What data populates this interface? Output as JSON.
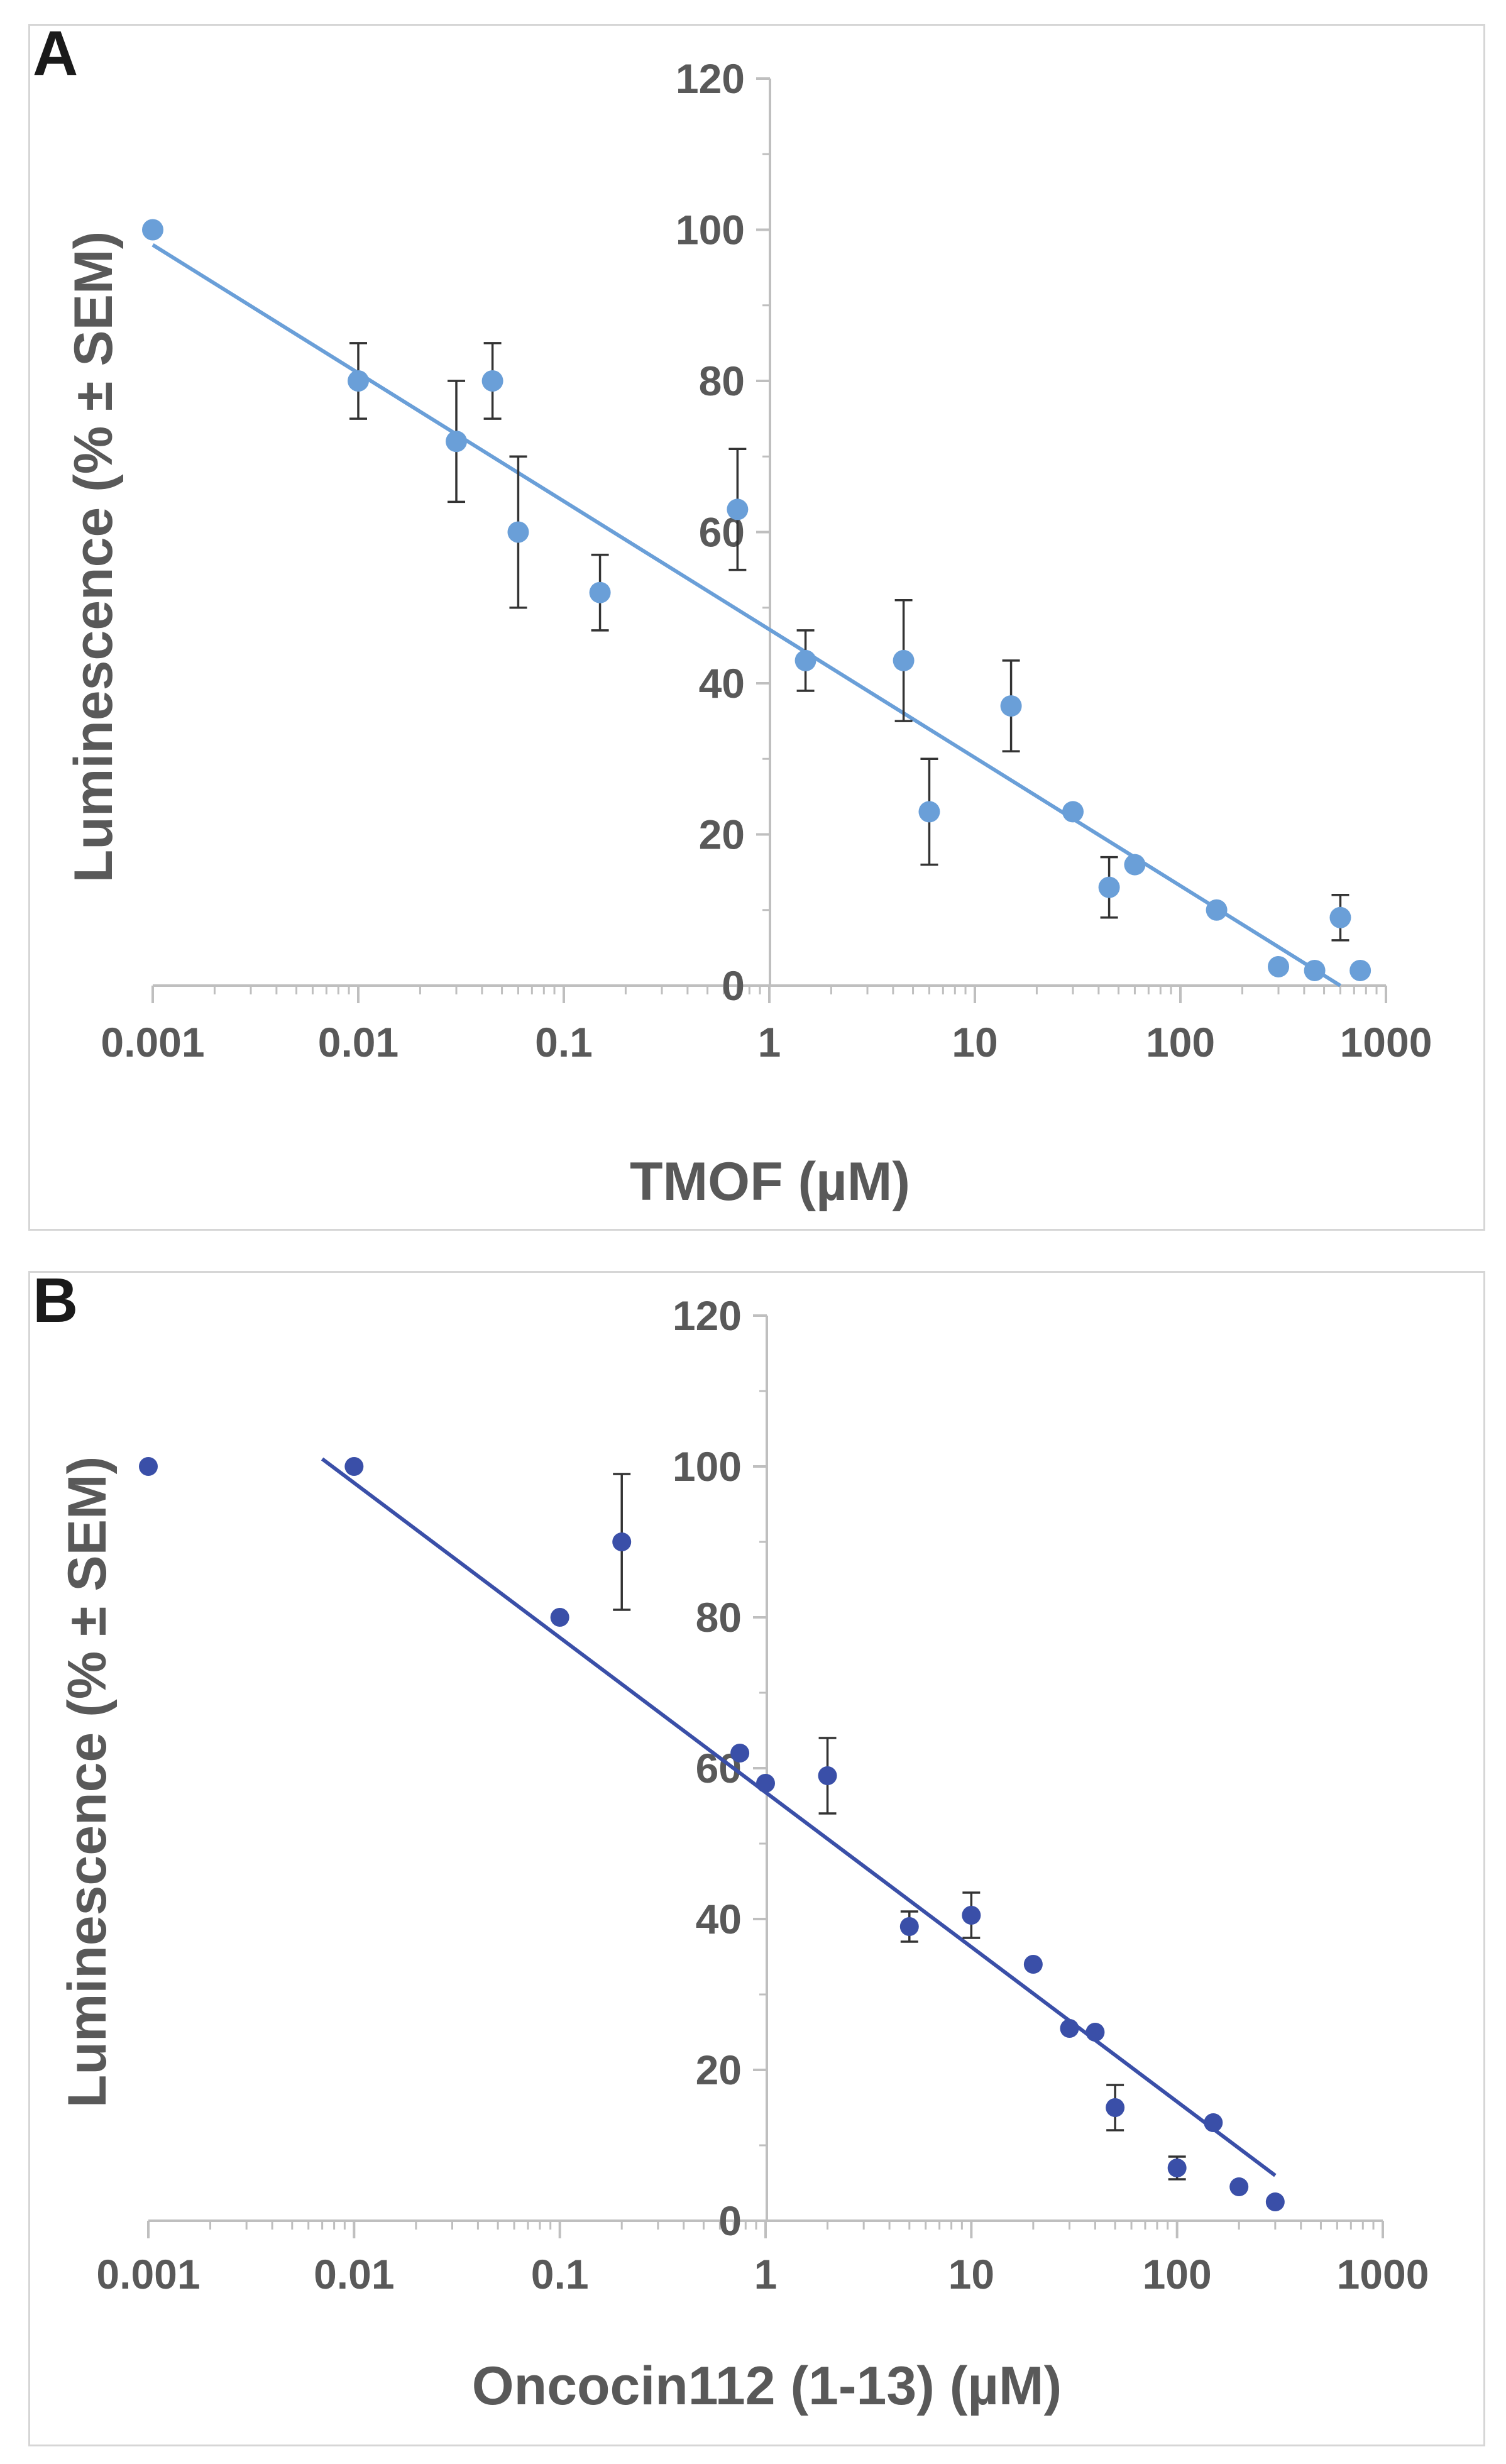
{
  "figure": {
    "panels": [
      {
        "letter": "A"
      },
      {
        "letter": "B"
      }
    ]
  },
  "chart_data": [
    {
      "type": "scatter",
      "panel": "A",
      "xscale": "log",
      "xlim": [
        0.001,
        1000
      ],
      "ylim": [
        0,
        120
      ],
      "xticks": [
        0.001,
        0.01,
        0.1,
        1,
        10,
        100,
        1000
      ],
      "xtick_labels": [
        "0.001",
        "0.01",
        "0.1",
        "1",
        "10",
        "100",
        "1000"
      ],
      "yticks": [
        0,
        20,
        40,
        60,
        80,
        100,
        120
      ],
      "ytick_labels": [
        "0",
        "20",
        "40",
        "60",
        "80",
        "100",
        "120"
      ],
      "xlabel": "TMOF (µM)",
      "ylabel": "Luminescence (% ± SEM)",
      "color": "#6a9fd8",
      "points": [
        {
          "x": 0.001,
          "y": 100,
          "err": 0
        },
        {
          "x": 0.01,
          "y": 80,
          "err": 5
        },
        {
          "x": 0.03,
          "y": 72,
          "err": 8
        },
        {
          "x": 0.045,
          "y": 80,
          "err": 5
        },
        {
          "x": 0.06,
          "y": 60,
          "err": 10
        },
        {
          "x": 0.15,
          "y": 52,
          "err": 5
        },
        {
          "x": 0.7,
          "y": 63,
          "err": 8
        },
        {
          "x": 1.5,
          "y": 43,
          "err": 4
        },
        {
          "x": 4.5,
          "y": 43,
          "err": 8
        },
        {
          "x": 6,
          "y": 23,
          "err": 7
        },
        {
          "x": 15,
          "y": 37,
          "err": 6
        },
        {
          "x": 30,
          "y": 23,
          "err": 0
        },
        {
          "x": 45,
          "y": 13,
          "err": 4
        },
        {
          "x": 60,
          "y": 16,
          "err": 0
        },
        {
          "x": 150,
          "y": 10,
          "err": 0
        },
        {
          "x": 300,
          "y": 2.5,
          "err": 0
        },
        {
          "x": 450,
          "y": 2,
          "err": 0
        },
        {
          "x": 600,
          "y": 9,
          "err": 3
        },
        {
          "x": 750,
          "y": 2,
          "err": 0
        }
      ],
      "trendline": {
        "x": [
          0.001,
          600
        ],
        "y": [
          98,
          0
        ]
      }
    },
    {
      "type": "scatter",
      "panel": "B",
      "xscale": "log",
      "xlim": [
        0.001,
        1000
      ],
      "ylim": [
        0,
        120
      ],
      "xticks": [
        0.001,
        0.01,
        0.1,
        1,
        10,
        100,
        1000
      ],
      "xtick_labels": [
        "0.001",
        "0.01",
        "0.1",
        "1",
        "10",
        "100",
        "1000"
      ],
      "yticks": [
        0,
        20,
        40,
        60,
        80,
        100,
        120
      ],
      "ytick_labels": [
        "0",
        "20",
        "40",
        "60",
        "80",
        "100",
        "120"
      ],
      "xlabel": "Oncocin112 (1-13) (µM)",
      "ylabel": "Luminescence (% ± SEM)",
      "color": "#3a4fa8",
      "points": [
        {
          "x": 0.001,
          "y": 100,
          "err": 0
        },
        {
          "x": 0.01,
          "y": 100,
          "err": 0
        },
        {
          "x": 0.1,
          "y": 80,
          "err": 0
        },
        {
          "x": 0.2,
          "y": 90,
          "err": 9
        },
        {
          "x": 0.75,
          "y": 62,
          "err": 0
        },
        {
          "x": 1,
          "y": 58,
          "err": 0
        },
        {
          "x": 2,
          "y": 59,
          "err": 5
        },
        {
          "x": 5,
          "y": 39,
          "err": 2
        },
        {
          "x": 10,
          "y": 40.5,
          "err": 3
        },
        {
          "x": 20,
          "y": 34,
          "err": 0
        },
        {
          "x": 30,
          "y": 25.5,
          "err": 0
        },
        {
          "x": 40,
          "y": 25,
          "err": 0
        },
        {
          "x": 50,
          "y": 15,
          "err": 3
        },
        {
          "x": 100,
          "y": 7,
          "err": 1.5
        },
        {
          "x": 150,
          "y": 13,
          "err": 0
        },
        {
          "x": 200,
          "y": 4.5,
          "err": 0
        },
        {
          "x": 300,
          "y": 2.5,
          "err": 0
        }
      ],
      "trendline": {
        "x": [
          0.007,
          300
        ],
        "y": [
          101,
          6
        ]
      }
    }
  ]
}
